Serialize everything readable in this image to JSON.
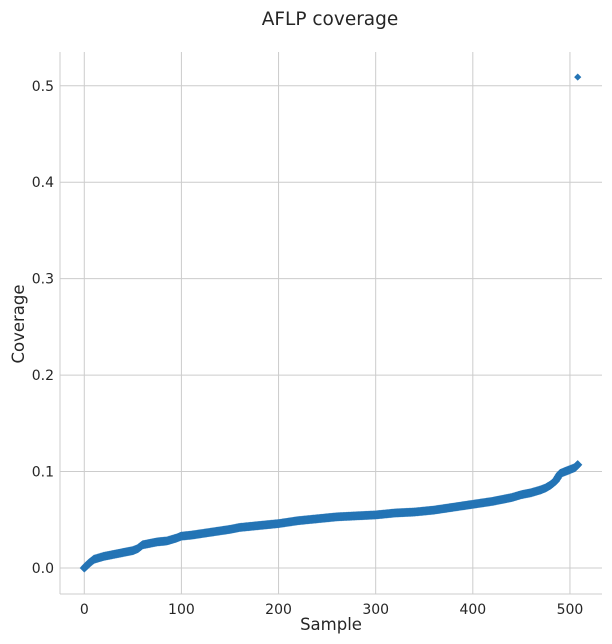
{
  "chart_data": {
    "type": "scatter",
    "title": "AFLP coverage",
    "xlabel": "Sample",
    "ylabel": "Coverage",
    "xlim": [
      -25,
      533
    ],
    "ylim": [
      -0.027,
      0.535
    ],
    "xticks": [
      0,
      100,
      200,
      300,
      400,
      500
    ],
    "yticks": [
      0.0,
      0.1,
      0.2,
      0.3,
      0.4,
      0.5
    ],
    "xtick_labels": [
      "0",
      "100",
      "200",
      "300",
      "400",
      "500"
    ],
    "ytick_labels": [
      "0.0",
      "0.1",
      "0.2",
      "0.3",
      "0.4",
      "0.5"
    ],
    "grid": true,
    "marker": "diamond",
    "color": "#2474b5",
    "n_samples": 510,
    "curve_points": [
      [
        0,
        0.0
      ],
      [
        5,
        0.005
      ],
      [
        10,
        0.009
      ],
      [
        20,
        0.012
      ],
      [
        30,
        0.014
      ],
      [
        40,
        0.016
      ],
      [
        50,
        0.018
      ],
      [
        55,
        0.02
      ],
      [
        60,
        0.024
      ],
      [
        65,
        0.025
      ],
      [
        75,
        0.027
      ],
      [
        85,
        0.028
      ],
      [
        95,
        0.031
      ],
      [
        100,
        0.033
      ],
      [
        110,
        0.034
      ],
      [
        130,
        0.037
      ],
      [
        150,
        0.04
      ],
      [
        160,
        0.042
      ],
      [
        180,
        0.044
      ],
      [
        200,
        0.046
      ],
      [
        220,
        0.049
      ],
      [
        240,
        0.051
      ],
      [
        260,
        0.053
      ],
      [
        280,
        0.054
      ],
      [
        300,
        0.055
      ],
      [
        320,
        0.057
      ],
      [
        340,
        0.058
      ],
      [
        360,
        0.06
      ],
      [
        380,
        0.063
      ],
      [
        400,
        0.066
      ],
      [
        420,
        0.069
      ],
      [
        440,
        0.073
      ],
      [
        450,
        0.076
      ],
      [
        460,
        0.078
      ],
      [
        470,
        0.081
      ],
      [
        475,
        0.083
      ],
      [
        480,
        0.086
      ],
      [
        485,
        0.09
      ],
      [
        490,
        0.098
      ],
      [
        495,
        0.1
      ],
      [
        500,
        0.102
      ],
      [
        505,
        0.104
      ],
      [
        508,
        0.107
      ]
    ],
    "outlier": [
      508,
      0.509
    ]
  }
}
